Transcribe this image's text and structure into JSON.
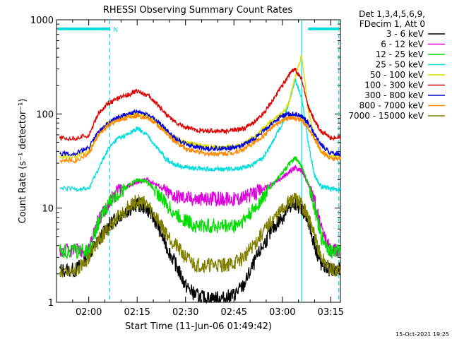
{
  "chart_data": {
    "type": "line",
    "title": "RHESSI Observing Summary Count Rates",
    "xlabel": "Start Time (11-Jun-06 01:49:42)",
    "ylabel": "Count Rate (s⁻¹ detector⁻¹)",
    "y_scale": "log",
    "ylim": [
      1,
      1000
    ],
    "xlim_minutes": [
      -10,
      78
    ],
    "x_ticks": [
      {
        "label": "02:00",
        "t": 0
      },
      {
        "label": "02:15",
        "t": 15
      },
      {
        "label": "02:30",
        "t": 30
      },
      {
        "label": "02:45",
        "t": 45
      },
      {
        "label": "03:00",
        "t": 60
      },
      {
        "label": "03:15",
        "t": 75
      }
    ],
    "y_ticks": [
      {
        "label": "1",
        "value": 1
      },
      {
        "label": "10",
        "value": 10
      },
      {
        "label": "100",
        "value": 100
      },
      {
        "label": "1000",
        "value": 1000
      }
    ],
    "legend_header": [
      "Det 1,3,4,5,6,9,",
      "FDecim 1, Att 0"
    ],
    "legend_position": "right",
    "annotations": {
      "flag_label": "N",
      "flag_level": 800,
      "flag_segments": [
        [
          -9.5,
          6.5
        ],
        [
          68,
          77.5
        ]
      ],
      "dashed_markers": [
        6.5,
        77.5
      ],
      "solid_markers": [
        66
      ]
    },
    "x_time_minutes": [
      -9,
      -4,
      0,
      3,
      6,
      9,
      12,
      15,
      18,
      21,
      24,
      27,
      30,
      33,
      36,
      39,
      42,
      45,
      48,
      51,
      54,
      57,
      60,
      62,
      64,
      66,
      68,
      70,
      72,
      75,
      78
    ],
    "series": [
      {
        "name": "3 - 6 keV",
        "color": "#000000",
        "values": [
          2.2,
          2.2,
          3.2,
          4.5,
          6.5,
          8,
          9.5,
          11,
          10,
          7,
          4,
          2.5,
          1.5,
          1.2,
          1.1,
          1.1,
          1.1,
          1.2,
          1.5,
          2.5,
          4,
          6,
          8,
          10,
          11.5,
          10,
          7,
          4,
          2.5,
          2.2,
          2.2
        ]
      },
      {
        "name": "6 - 12 keV",
        "color": "#dd00dd",
        "values": [
          3.5,
          3.5,
          3.5,
          7.5,
          11,
          15,
          17,
          19,
          20,
          18,
          15,
          13.5,
          13,
          12.5,
          12.5,
          12.5,
          12.5,
          12.5,
          13,
          14,
          16,
          18,
          21,
          24,
          27,
          25,
          18,
          12,
          6,
          3.5,
          3.5
        ]
      },
      {
        "name": "12 - 25 keV",
        "color": "#00dd00",
        "values": [
          3.5,
          3.5,
          3.5,
          7,
          11,
          14,
          17,
          20,
          19,
          15,
          11,
          8.5,
          7.5,
          6.5,
          6.5,
          6.5,
          6.5,
          6.5,
          7.5,
          9.5,
          13,
          18,
          24,
          29,
          34,
          28,
          18,
          10,
          5,
          3.5,
          3.5
        ]
      },
      {
        "name": "25 - 50 keV",
        "color": "#00dddd",
        "values": [
          16,
          16,
          16,
          26,
          42,
          55,
          60,
          70,
          60,
          45,
          33,
          29,
          27,
          26.5,
          26,
          26,
          26,
          26,
          27,
          29,
          34,
          50,
          80,
          130,
          230,
          150,
          50,
          22,
          17,
          16,
          16
        ]
      },
      {
        "name": "50 - 100 keV",
        "color": "#dddd00",
        "values": [
          35,
          35,
          40,
          60,
          80,
          88,
          95,
          100,
          95,
          80,
          65,
          55,
          50,
          47,
          45,
          44,
          44,
          45,
          48,
          55,
          70,
          85,
          100,
          130,
          250,
          420,
          110,
          55,
          40,
          35,
          35
        ]
      },
      {
        "name": "100 - 300 keV",
        "color": "#dd0000",
        "values": [
          55,
          55,
          60,
          100,
          130,
          145,
          160,
          175,
          160,
          130,
          100,
          80,
          72,
          68,
          66,
          66,
          66,
          67,
          70,
          80,
          100,
          140,
          200,
          260,
          300,
          230,
          120,
          85,
          65,
          56,
          56
        ]
      },
      {
        "name": "300 - 800 keV",
        "color": "#0000dd",
        "values": [
          38,
          38,
          44,
          65,
          80,
          92,
          100,
          105,
          100,
          85,
          68,
          55,
          48,
          45,
          43,
          43,
          43,
          44,
          47,
          54,
          65,
          80,
          95,
          100,
          100,
          94,
          80,
          60,
          47,
          38,
          38
        ]
      },
      {
        "name": "800 - 7000 keV",
        "color": "#ff8800",
        "values": [
          32,
          32,
          38,
          60,
          75,
          85,
          92,
          96,
          92,
          78,
          62,
          50,
          43,
          40,
          38,
          38,
          38,
          39,
          42,
          49,
          58,
          72,
          85,
          90,
          90,
          86,
          72,
          54,
          41,
          33,
          33
        ]
      },
      {
        "name": "7000 - 15000 keV",
        "color": "#808000",
        "values": [
          2.2,
          2.2,
          3,
          4.5,
          6,
          8,
          10,
          12,
          11,
          8,
          5.5,
          4,
          3,
          2.5,
          2.5,
          2.5,
          2.5,
          2.6,
          3,
          4,
          5.5,
          7.5,
          9.5,
          11.5,
          12.5,
          11,
          8,
          5,
          3,
          2.2,
          2.2
        ]
      }
    ]
  },
  "footer_timestamp": "15-Oct-2021 19:25"
}
